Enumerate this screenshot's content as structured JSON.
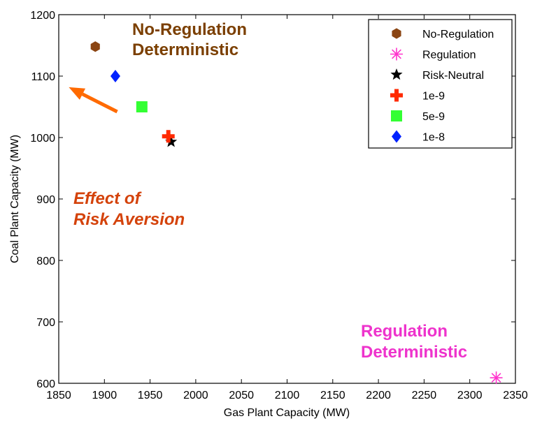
{
  "chart_data": {
    "type": "scatter",
    "xlabel": "Gas Plant Capacity (MW)",
    "ylabel": "Coal Plant Capacity (MW)",
    "xlim": [
      1850,
      2350
    ],
    "ylim": [
      600,
      1200
    ],
    "xticks": [
      "1850",
      "1900",
      "1950",
      "2000",
      "2050",
      "2100",
      "2150",
      "2200",
      "2250",
      "2300",
      "2350"
    ],
    "yticks": [
      "600",
      "700",
      "800",
      "900",
      "1000",
      "1100",
      "1200"
    ],
    "grid": false,
    "legend_position": "top-right",
    "series": [
      {
        "name": "No-Regulation",
        "marker": "hexagon",
        "color": "#8B4513",
        "x": 1890,
        "y": 1148
      },
      {
        "name": "Regulation",
        "marker": "asterisk",
        "color": "#FF33CC",
        "x": 2329,
        "y": 609
      },
      {
        "name": "Risk-Neutral",
        "marker": "star",
        "color": "#000000",
        "x": 1973,
        "y": 993
      },
      {
        "name": "1e-9",
        "marker": "plus",
        "color": "#FF2A00",
        "x": 1970,
        "y": 1002
      },
      {
        "name": "5e-9",
        "marker": "square",
        "color": "#33FF33",
        "x": 1941,
        "y": 1050
      },
      {
        "name": "1e-8",
        "marker": "diamond",
        "color": "#0022FF",
        "x": 1912,
        "y": 1100
      }
    ],
    "annotations": [
      {
        "lines": [
          "No-Regulation",
          "Deterministic"
        ],
        "color": "#7B3F00",
        "italic": false
      },
      {
        "lines": [
          "Effect of",
          "Risk Aversion"
        ],
        "color": "#D4420A",
        "italic": true
      },
      {
        "lines": [
          "Regulation",
          "Deterministic"
        ],
        "color": "#EE33CC",
        "italic": false
      }
    ],
    "arrow": {
      "color": "#FF6A00",
      "from": [
        1914,
        1042
      ],
      "to": [
        1861,
        1082
      ]
    }
  }
}
